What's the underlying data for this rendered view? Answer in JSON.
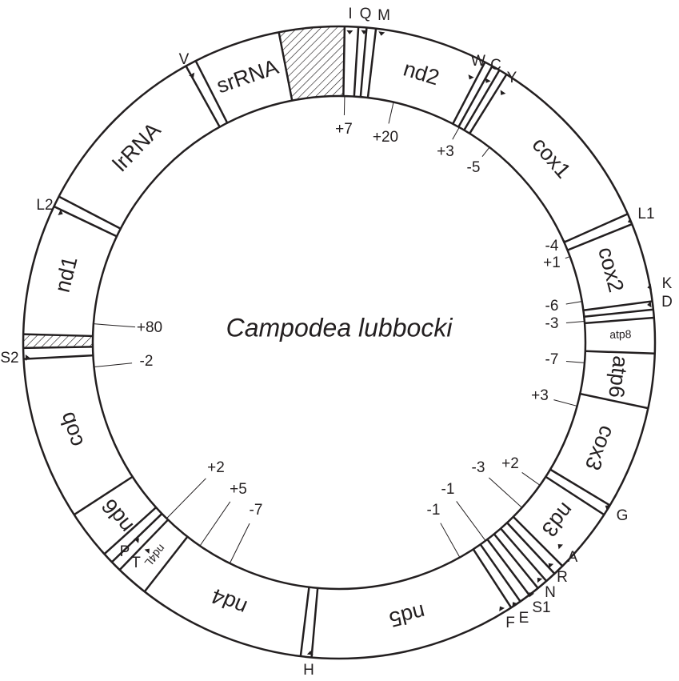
{
  "title": "Campodea lubbocki",
  "genes": [
    "srRNA",
    "lrRNA",
    "nd1",
    "cob",
    "nd6",
    "nd4L",
    "nd4",
    "nd5",
    "nd3",
    "cox3",
    "atp6",
    "atp8",
    "cox2",
    "cox1",
    "nd2"
  ],
  "trnas": [
    "I",
    "Q",
    "M",
    "W",
    "C",
    "Y",
    "L1",
    "K",
    "D",
    "G",
    "A",
    "R",
    "N",
    "S1",
    "E",
    "F",
    "H",
    "T",
    "P",
    "S2",
    "L2",
    "V"
  ],
  "spacers": [
    "+7",
    "+20",
    "+3",
    "-5",
    "-4",
    "+1",
    "-6",
    "-3",
    "-7",
    "+3",
    "+2",
    "-3",
    "-1",
    "-1",
    "+2",
    "+5",
    "-7",
    "+80",
    "-2"
  ]
}
